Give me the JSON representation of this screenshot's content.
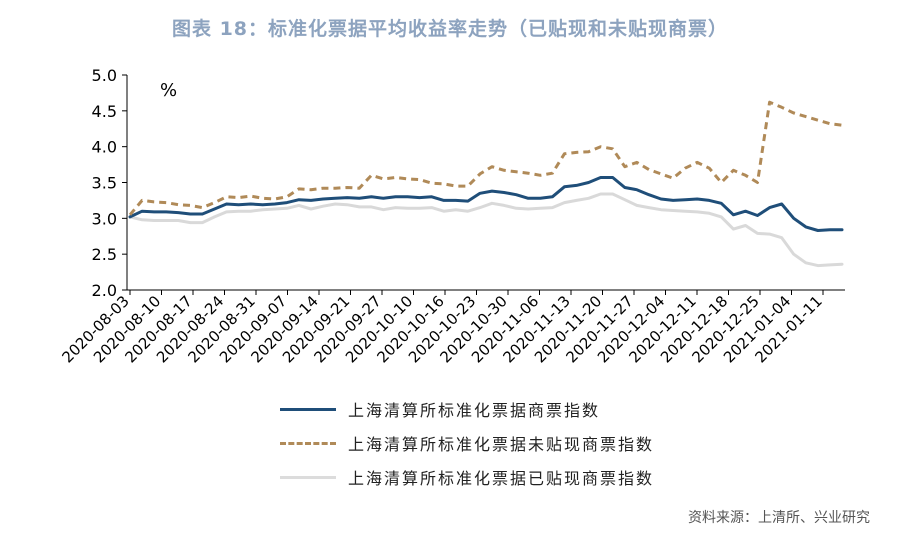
{
  "title": "图表 18：标准化票据平均收益率走势（已贴现和未贴现商票）",
  "source": "资料来源：上清所、兴业研究",
  "chart_data": {
    "type": "line",
    "unit_label": "%",
    "ylim": [
      2.0,
      5.0
    ],
    "yticks": [
      "2.0",
      "2.5",
      "3.0",
      "3.5",
      "4.0",
      "4.5",
      "5.0"
    ],
    "xtick_labels": [
      "2020-08-03",
      "2020-08-10",
      "2020-08-17",
      "2020-08-24",
      "2020-08-31",
      "2020-09-07",
      "2020-09-14",
      "2020-09-21",
      "2020-09-27",
      "2020-10-10",
      "2020-10-16",
      "2020-10-23",
      "2020-10-30",
      "2020-11-06",
      "2020-11-13",
      "2020-11-20",
      "2020-11-27",
      "2020-12-04",
      "2020-12-11",
      "2020-12-18",
      "2020-12-25",
      "2021-01-04",
      "2021-01-11"
    ],
    "series": [
      {
        "name": "上海清算所标准化票据商票指数",
        "color": "#1f4e79",
        "style": "solid",
        "values": [
          3.02,
          3.1,
          3.09,
          3.09,
          3.08,
          3.06,
          3.06,
          3.13,
          3.2,
          3.19,
          3.2,
          3.19,
          3.2,
          3.22,
          3.26,
          3.25,
          3.27,
          3.28,
          3.29,
          3.28,
          3.3,
          3.28,
          3.3,
          3.3,
          3.29,
          3.3,
          3.25,
          3.25,
          3.24,
          3.35,
          3.38,
          3.36,
          3.33,
          3.28,
          3.28,
          3.3,
          3.44,
          3.46,
          3.5,
          3.57,
          3.57,
          3.43,
          3.4,
          3.33,
          3.27,
          3.25,
          3.26,
          3.27,
          3.25,
          3.21,
          3.05,
          3.1,
          3.04,
          3.15,
          3.2,
          3.0,
          2.88,
          2.83,
          2.84,
          2.84
        ]
      },
      {
        "name": "上海清算所标准化票据未贴现商票指数",
        "color": "#b08a58",
        "style": "dashed",
        "values": [
          3.05,
          3.25,
          3.23,
          3.22,
          3.19,
          3.18,
          3.15,
          3.22,
          3.3,
          3.29,
          3.31,
          3.28,
          3.27,
          3.3,
          3.41,
          3.4,
          3.42,
          3.42,
          3.43,
          3.42,
          3.6,
          3.55,
          3.57,
          3.55,
          3.54,
          3.49,
          3.48,
          3.45,
          3.45,
          3.62,
          3.72,
          3.67,
          3.65,
          3.63,
          3.6,
          3.63,
          3.9,
          3.92,
          3.93,
          4.0,
          3.97,
          3.72,
          3.78,
          3.68,
          3.62,
          3.56,
          3.7,
          3.78,
          3.7,
          3.5,
          3.67,
          3.6,
          3.5,
          4.62,
          4.55,
          4.47,
          4.42,
          4.37,
          4.32,
          4.3
        ]
      },
      {
        "name": "上海清算所标准化票据已贴现商票指数",
        "color": "#d9d9d9",
        "style": "solid",
        "values": [
          3.02,
          2.98,
          2.97,
          2.97,
          2.97,
          2.94,
          2.94,
          3.02,
          3.09,
          3.1,
          3.1,
          3.12,
          3.13,
          3.14,
          3.18,
          3.13,
          3.17,
          3.2,
          3.19,
          3.16,
          3.16,
          3.12,
          3.15,
          3.14,
          3.14,
          3.15,
          3.1,
          3.12,
          3.1,
          3.15,
          3.21,
          3.18,
          3.14,
          3.13,
          3.14,
          3.15,
          3.22,
          3.25,
          3.28,
          3.34,
          3.34,
          3.26,
          3.18,
          3.15,
          3.12,
          3.11,
          3.1,
          3.09,
          3.07,
          3.02,
          2.85,
          2.9,
          2.79,
          2.78,
          2.73,
          2.5,
          2.38,
          2.34,
          2.35,
          2.36
        ]
      }
    ]
  }
}
